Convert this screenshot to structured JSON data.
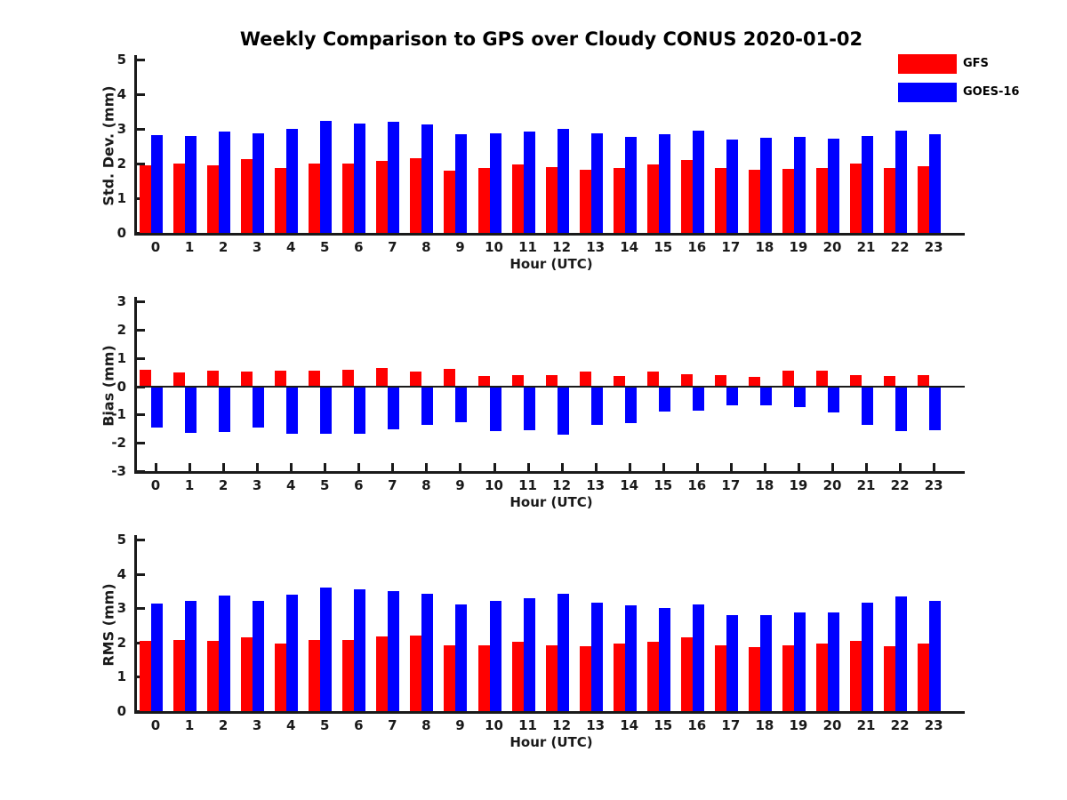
{
  "title": "Weekly Comparison to GPS over Cloudy CONUS 2020-01-02",
  "colors": {
    "gfs_red": "#ff0000",
    "goes_blue": "#0000ff",
    "axis": "#1a1a1a",
    "background": "#ffffff"
  },
  "legend": {
    "position": "top-right",
    "items": [
      {
        "label": "GFS",
        "color": "#ff0000",
        "swatch": "red-rect"
      },
      {
        "label": "GOES-16",
        "color": "#0000ff",
        "swatch": "blue-rect"
      }
    ]
  },
  "chart_data": [
    {
      "type": "bar",
      "name": "std-dev-panel",
      "xlabel": "Hour (UTC)",
      "ylabel": "Std. Dev. (mm)",
      "ylim": [
        0,
        5
      ],
      "yticks": [
        0,
        1,
        2,
        3,
        4,
        5
      ],
      "grid": false,
      "legend_position": "top-right-outside",
      "categories": [
        0,
        1,
        2,
        3,
        4,
        5,
        6,
        7,
        8,
        9,
        10,
        11,
        12,
        13,
        14,
        15,
        16,
        17,
        18,
        19,
        20,
        21,
        22,
        23
      ],
      "series": [
        {
          "name": "GFS",
          "color": "#ff0000",
          "values": [
            1.95,
            2.0,
            1.95,
            2.12,
            1.88,
            2.0,
            2.0,
            2.07,
            2.15,
            1.8,
            1.86,
            1.97,
            1.89,
            1.81,
            1.88,
            1.98,
            2.1,
            1.88,
            1.82,
            1.85,
            1.87,
            2.0,
            1.86,
            1.92
          ]
        },
        {
          "name": "GOES-16",
          "color": "#0000ff",
          "values": [
            2.82,
            2.79,
            2.92,
            2.87,
            3.01,
            3.22,
            3.16,
            3.2,
            3.12,
            2.84,
            2.87,
            2.92,
            2.99,
            2.87,
            2.77,
            2.84,
            2.96,
            2.69,
            2.74,
            2.77,
            2.71,
            2.8,
            2.94,
            2.84
          ]
        }
      ]
    },
    {
      "type": "bar",
      "name": "bias-panel",
      "xlabel": "Hour (UTC)",
      "ylabel": "Bias (mm)",
      "ylim": [
        -3,
        3
      ],
      "yticks": [
        -3,
        -2,
        -1,
        0,
        1,
        2,
        3
      ],
      "grid": false,
      "zero_line": true,
      "categories": [
        0,
        1,
        2,
        3,
        4,
        5,
        6,
        7,
        8,
        9,
        10,
        11,
        12,
        13,
        14,
        15,
        16,
        17,
        18,
        19,
        20,
        21,
        22,
        23
      ],
      "series": [
        {
          "name": "GFS",
          "color": "#ff0000",
          "values": [
            0.58,
            0.5,
            0.54,
            0.52,
            0.54,
            0.54,
            0.57,
            0.63,
            0.52,
            0.6,
            0.37,
            0.38,
            0.38,
            0.53,
            0.35,
            0.51,
            0.42,
            0.38,
            0.34,
            0.54,
            0.54,
            0.4,
            0.36,
            0.38
          ]
        },
        {
          "name": "GOES-16",
          "color": "#0000ff",
          "values": [
            -1.42,
            -1.61,
            -1.6,
            -1.42,
            -1.64,
            -1.64,
            -1.65,
            -1.48,
            -1.35,
            -1.23,
            -1.54,
            -1.53,
            -1.67,
            -1.32,
            -1.28,
            -0.85,
            -0.84,
            -0.63,
            -0.64,
            -0.7,
            -0.89,
            -1.35,
            -1.56,
            -1.53
          ]
        }
      ]
    },
    {
      "type": "bar",
      "name": "rms-panel",
      "xlabel": "Hour (UTC)",
      "ylabel": "RMS (mm)",
      "ylim": [
        0,
        5
      ],
      "yticks": [
        0,
        1,
        2,
        3,
        4,
        5
      ],
      "grid": false,
      "categories": [
        0,
        1,
        2,
        3,
        4,
        5,
        6,
        7,
        8,
        9,
        10,
        11,
        12,
        13,
        14,
        15,
        16,
        17,
        18,
        19,
        20,
        21,
        22,
        23
      ],
      "series": [
        {
          "name": "GFS",
          "color": "#ff0000",
          "values": [
            2.04,
            2.06,
            2.04,
            2.16,
            1.97,
            2.06,
            2.06,
            2.18,
            2.21,
            1.92,
            1.92,
            2.01,
            1.93,
            1.88,
            1.96,
            2.03,
            2.14,
            1.92,
            1.87,
            1.93,
            1.96,
            2.04,
            1.9,
            1.96
          ]
        },
        {
          "name": "GOES-16",
          "color": "#0000ff",
          "values": [
            3.14,
            3.22,
            3.36,
            3.2,
            3.4,
            3.61,
            3.54,
            3.51,
            3.42,
            3.11,
            3.22,
            3.28,
            3.42,
            3.15,
            3.08,
            3.0,
            3.1,
            2.79,
            2.81,
            2.88,
            2.87,
            3.15,
            3.33,
            3.22
          ]
        }
      ]
    }
  ]
}
